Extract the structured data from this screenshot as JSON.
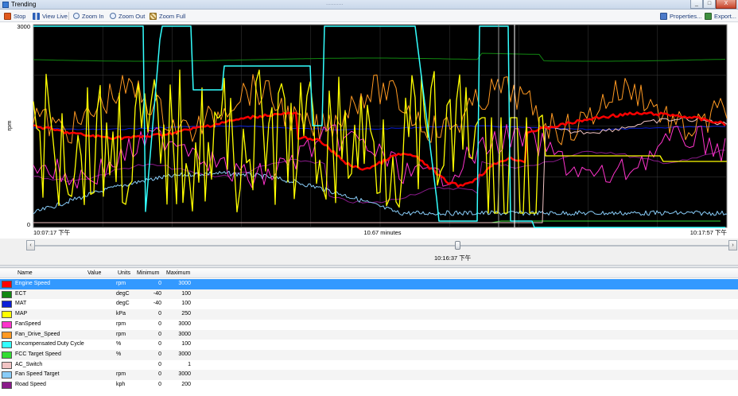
{
  "window": {
    "title": "Trending",
    "faded_title": "...........",
    "controls": [
      "_",
      "□",
      "X"
    ]
  },
  "toolbar": {
    "stop": "Stop",
    "view_live": "View Live",
    "zoom_in": "Zoom In",
    "zoom_out": "Zoom Out",
    "zoom_full": "Zoom Full",
    "properties": "Properties...",
    "export": "Export..."
  },
  "chart": {
    "y_label": "rpm",
    "y_top": "3000",
    "y_bottom": "0",
    "x_start": "10:07:17 下午",
    "x_mid": "10.67 minutes",
    "x_end": "10:17:57 下午",
    "background": "#000000",
    "grid_color": "#3c3c3c"
  },
  "scroll": {
    "time": "10:16:37 下午",
    "left_arrow": "‹",
    "right_arrow": "›",
    "position": 0.61
  },
  "table": {
    "headers": {
      "name": "Name",
      "value": "Value",
      "units": "Units",
      "min": "Minimum",
      "max": "Maximum"
    },
    "rows": [
      {
        "name": "Engine Speed",
        "units": "rpm",
        "min": "0",
        "max": "3000",
        "color": "#ff0000",
        "selected": true
      },
      {
        "name": "ECT",
        "units": "degC",
        "min": "-40",
        "max": "100",
        "color": "#118811"
      },
      {
        "name": "MAT",
        "units": "degC",
        "min": "-40",
        "max": "100",
        "color": "#0a1ed8"
      },
      {
        "name": "MAP",
        "units": "kPa",
        "min": "0",
        "max": "250",
        "color": "#ffff00"
      },
      {
        "name": "FanSpeed",
        "units": "rpm",
        "min": "0",
        "max": "3000",
        "color": "#ff33cc"
      },
      {
        "name": "Fan_Drive_Speed",
        "units": "rpm",
        "min": "0",
        "max": "3000",
        "color": "#ff9922"
      },
      {
        "name": "Uncompensated Duty Cycle",
        "units": "%",
        "min": "0",
        "max": "100",
        "color": "#33ffff"
      },
      {
        "name": "FCC Target Speed",
        "units": "%",
        "min": "0",
        "max": "3000",
        "color": "#33dd33"
      },
      {
        "name": "AC_Switch",
        "units": "",
        "min": "0",
        "max": "1",
        "color": "#f2c4c4"
      },
      {
        "name": "Fan Speed Target",
        "units": "rpm",
        "min": "0",
        "max": "3000",
        "color": "#88ccf8"
      },
      {
        "name": "Road Speed",
        "units": "kph",
        "min": "0",
        "max": "200",
        "color": "#8a1a8a"
      }
    ]
  }
}
